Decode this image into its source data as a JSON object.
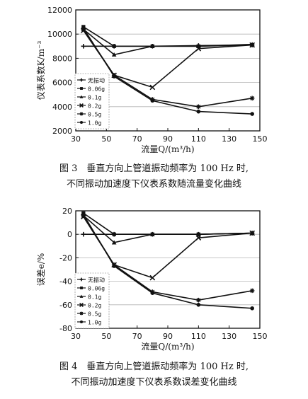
{
  "chart_data": [
    {
      "type": "line",
      "xlabel": "流量Q/(m³/h)",
      "ylabel": "仪表系数K/m⁻³",
      "xlim": [
        30,
        150
      ],
      "ylim": [
        2000,
        12000
      ],
      "xticks": [
        30,
        50,
        70,
        90,
        110,
        130,
        150
      ],
      "yticks": [
        2000,
        4000,
        6000,
        8000,
        10000,
        12000
      ],
      "grid": "horizontal",
      "legend_position": "left-middle",
      "x": [
        35,
        55,
        80,
        110,
        145
      ],
      "series": [
        {
          "name": "无振动",
          "marker": "plus",
          "values": [
            9000,
            9000,
            9000,
            9050,
            9100
          ]
        },
        {
          "name": "0.06g",
          "marker": "square",
          "values": [
            10600,
            9000,
            9000,
            9000,
            9100
          ]
        },
        {
          "name": "0.1g",
          "marker": "triangle",
          "values": [
            10400,
            8300,
            9000,
            9000,
            9150
          ]
        },
        {
          "name": "0.2g",
          "marker": "cross",
          "values": [
            10300,
            6600,
            5600,
            8800,
            9100
          ]
        },
        {
          "name": "0.5g",
          "marker": "star",
          "values": [
            10400,
            6600,
            4600,
            4000,
            4700
          ]
        },
        {
          "name": "1.0g",
          "marker": "circle",
          "values": [
            10500,
            6500,
            4500,
            3600,
            3400
          ]
        }
      ]
    },
    {
      "type": "line",
      "xlabel": "流量Q/(m³/h)",
      "ylabel": "误差e/%",
      "xlim": [
        30,
        150
      ],
      "ylim": [
        -80,
        20
      ],
      "xticks": [
        30,
        50,
        70,
        90,
        110,
        130,
        150
      ],
      "yticks": [
        -80,
        -60,
        -40,
        -20,
        0,
        20
      ],
      "grid": "horizontal",
      "legend_position": "lower-left",
      "x": [
        35,
        55,
        80,
        110,
        145
      ],
      "series": [
        {
          "name": "无振动",
          "marker": "plus",
          "values": [
            0,
            0,
            0,
            0,
            1
          ]
        },
        {
          "name": "0.06g",
          "marker": "square",
          "values": [
            18,
            0,
            0,
            0,
            1
          ]
        },
        {
          "name": "0.1g",
          "marker": "triangle",
          "values": [
            16,
            -7,
            0,
            0,
            1
          ]
        },
        {
          "name": "0.2g",
          "marker": "cross",
          "values": [
            15,
            -26,
            -37,
            -3,
            1
          ]
        },
        {
          "name": "0.5g",
          "marker": "star",
          "values": [
            16,
            -26,
            -49,
            -56,
            -48
          ]
        },
        {
          "name": "1.0g",
          "marker": "circle",
          "values": [
            17,
            -27,
            -50,
            -60,
            -63
          ]
        }
      ]
    }
  ],
  "captions": [
    {
      "line1": "图 3　垂直方向上管道振动频率为 100 Hz 时,",
      "line2": "不同振动加速度下仪表系数随流量变化曲线"
    },
    {
      "line1": "图 4　垂直方向上管道振动频率为 100 Hz 时,",
      "line2": "不同振动加速度下仪表系数误差变化曲线"
    }
  ]
}
